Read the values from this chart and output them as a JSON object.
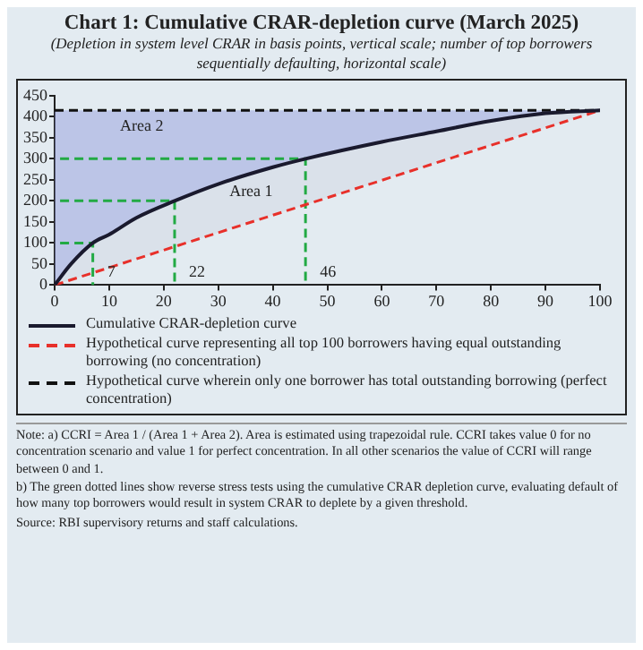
{
  "chart_data": {
    "type": "line",
    "title": "Chart 1: Cumulative CRAR-depletion curve (March 2025)",
    "subtitle": "(Depletion in system level CRAR in basis points, vertical scale; number of top borrowers sequentially defaulting, horizontal scale)",
    "xlim": [
      0,
      100
    ],
    "xticks": [
      0,
      10,
      20,
      30,
      40,
      50,
      60,
      70,
      80,
      90,
      100
    ],
    "ylim": [
      0,
      450
    ],
    "yticks": [
      0,
      50,
      100,
      150,
      200,
      250,
      300,
      350,
      400,
      450
    ],
    "grid": false,
    "legend": "bottom",
    "marker": "none",
    "series": [
      {
        "name": "Cumulative CRAR-depletion curve",
        "color": "#1a1a2e",
        "line_style": "solid",
        "x": [
          0,
          3,
          7,
          10,
          15,
          22,
          30,
          40,
          46,
          60,
          70,
          80,
          90,
          100
        ],
        "values": [
          0,
          50,
          100,
          120,
          160,
          200,
          240,
          280,
          300,
          340,
          365,
          390,
          408,
          415
        ]
      },
      {
        "name": "Hypothetical curve representing all top 100 borrowers having equal outstanding borrowing (no concentration)",
        "color": "#e8302a",
        "line_style": "dashed",
        "x": [
          0,
          100
        ],
        "values": [
          0,
          415
        ]
      },
      {
        "name": "Hypothetical curve wherein only one borrower has total outstanding borrowing (perfect concentration)",
        "color": "#111111",
        "line_style": "dashed",
        "x": [
          0,
          100
        ],
        "values": [
          415,
          415
        ]
      },
      {
        "color": "#22aa44",
        "line_style": "dashed",
        "x": [
          1,
          7,
          7
        ],
        "values": [
          100,
          100,
          0
        ]
      },
      {
        "color": "#22aa44",
        "line_style": "dashed",
        "x": [
          1,
          22,
          22
        ],
        "values": [
          200,
          200,
          0
        ]
      },
      {
        "color": "#22aa44",
        "line_style": "dashed",
        "x": [
          1,
          46,
          46
        ],
        "values": [
          300,
          300,
          0
        ]
      }
    ],
    "annotations": [
      {
        "text": "Area 2",
        "x": 12,
        "y": 415
      },
      {
        "text": "Area 1",
        "x": 40,
        "y": 280
      },
      {
        "text": "7",
        "x": 7,
        "y": 0
      },
      {
        "text": "22",
        "x": 22,
        "y": 0
      },
      {
        "text": "46",
        "x": 46,
        "y": 0
      },
      "Note: a) CCRI = Area 1 / (Area 1 + Area 2). Area is estimated using trapezoidal rule. CCRI takes value 0 for no concentration scenario and value 1 for perfect concentration. In all other scenarios the value of CCRI will range between 0 and 1.",
      "b) The green dotted lines show reverse stress tests using the cumulative CRAR depletion curve, evaluating default of how many top borrowers would result in system CRAR to deplete by a given threshold.",
      "Source: RBI supervisory returns and staff calculations."
    ]
  }
}
